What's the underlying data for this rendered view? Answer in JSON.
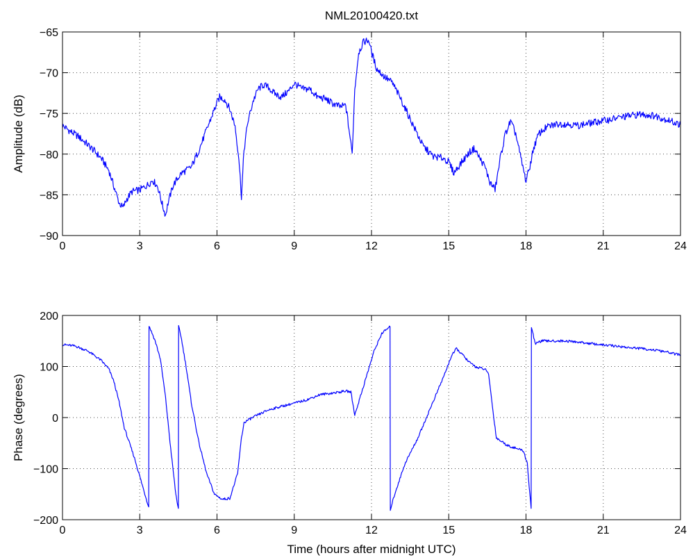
{
  "chart_data": [
    {
      "type": "line",
      "title": "NML20100420.txt",
      "xlabel": "",
      "ylabel": "Amplitude (dB)",
      "xlim": [
        0,
        24
      ],
      "ylim": [
        -90,
        -65
      ],
      "xticks": [
        0,
        3,
        6,
        9,
        12,
        15,
        18,
        21,
        24
      ],
      "yticks": [
        -90,
        -85,
        -80,
        -75,
        -70,
        -65
      ],
      "xtick_labels": [
        "0",
        "3",
        "6",
        "9",
        "12",
        "15",
        "18",
        "21",
        "24"
      ],
      "ytick_labels": [
        "−90",
        "−85",
        "−80",
        "−75",
        "−70",
        "−65"
      ],
      "grid": true,
      "series": [
        {
          "color": "#0000ff",
          "x": [
            0,
            0.3,
            0.6,
            0.9,
            1.2,
            1.5,
            1.8,
            2.0,
            2.2,
            2.35,
            2.5,
            2.7,
            3.0,
            3.3,
            3.5,
            3.7,
            3.9,
            4.0,
            4.1,
            4.3,
            4.6,
            5.0,
            5.3,
            5.6,
            5.9,
            6.1,
            6.3,
            6.5,
            6.7,
            6.85,
            6.95,
            7.05,
            7.2,
            7.4,
            7.6,
            7.8,
            8.0,
            8.2,
            8.5,
            8.8,
            9.0,
            9.3,
            9.6,
            9.9,
            10.2,
            10.5,
            10.8,
            11.0,
            11.15,
            11.25,
            11.35,
            11.5,
            11.7,
            11.9,
            12.0,
            12.2,
            12.5,
            12.8,
            13.1,
            13.4,
            13.7,
            14.0,
            14.4,
            14.8,
            15.0,
            15.2,
            15.5,
            15.8,
            16.0,
            16.2,
            16.4,
            16.6,
            16.8,
            16.9,
            17.0,
            17.2,
            17.4,
            17.6,
            17.8,
            18.0,
            18.15,
            18.3,
            18.5,
            18.8,
            19.2,
            19.6,
            20.0,
            20.5,
            21.0,
            21.5,
            22.0,
            22.5,
            23.0,
            23.5,
            24.0
          ],
          "values": [
            -76.5,
            -77.2,
            -77.8,
            -78.6,
            -79.5,
            -80.5,
            -82.0,
            -84.0,
            -86.0,
            -86.6,
            -85.5,
            -84.6,
            -84.4,
            -83.8,
            -83.2,
            -84.0,
            -86.5,
            -87.5,
            -86.0,
            -83.8,
            -82.4,
            -81.6,
            -79.5,
            -77.0,
            -74.5,
            -73.0,
            -73.3,
            -74.5,
            -76.5,
            -80.5,
            -85.2,
            -79.5,
            -76.0,
            -73.5,
            -72.0,
            -71.5,
            -71.8,
            -72.5,
            -73.0,
            -72.2,
            -71.3,
            -72.0,
            -72.0,
            -73.0,
            -73.2,
            -73.8,
            -74.2,
            -74.0,
            -77.5,
            -80.0,
            -72.0,
            -67.5,
            -66.2,
            -66.0,
            -67.5,
            -69.5,
            -70.5,
            -71.2,
            -73.0,
            -75.0,
            -77.0,
            -79.0,
            -80.3,
            -80.5,
            -81.0,
            -82.3,
            -81.0,
            -79.8,
            -79.3,
            -80.5,
            -81.5,
            -83.5,
            -84.3,
            -82.5,
            -80.5,
            -77.5,
            -76.0,
            -77.5,
            -80.5,
            -83.3,
            -81.5,
            -79.2,
            -77.5,
            -76.7,
            -76.3,
            -76.3,
            -76.5,
            -76.2,
            -75.9,
            -75.6,
            -75.3,
            -75.1,
            -75.3,
            -75.8,
            -76.4
          ]
        }
      ]
    },
    {
      "type": "line",
      "title": "",
      "xlabel": "Time (hours after midnight UTC)",
      "ylabel": "Phase (degrees)",
      "xlim": [
        0,
        24
      ],
      "ylim": [
        -200,
        200
      ],
      "xticks": [
        0,
        3,
        6,
        9,
        12,
        15,
        18,
        21,
        24
      ],
      "yticks": [
        -200,
        -100,
        0,
        100,
        200
      ],
      "xtick_labels": [
        "0",
        "3",
        "6",
        "9",
        "12",
        "15",
        "18",
        "21",
        "24"
      ],
      "ytick_labels": [
        "−200",
        "−100",
        "0",
        "100",
        "200"
      ],
      "grid": true,
      "series": [
        {
          "color": "#0000ff",
          "x": [
            0,
            0.5,
            1.0,
            1.5,
            1.8,
            2.0,
            2.2,
            2.4,
            2.6,
            2.8,
            3.0,
            3.2,
            3.35,
            3.36,
            3.4,
            3.6,
            3.8,
            4.0,
            4.2,
            4.4,
            4.5,
            4.51,
            4.6,
            4.8,
            5.0,
            5.3,
            5.6,
            5.9,
            6.2,
            6.5,
            6.8,
            6.95,
            7.05,
            7.2,
            7.5,
            8.0,
            8.5,
            9.0,
            9.5,
            10.0,
            10.5,
            11.0,
            11.2,
            11.35,
            11.5,
            11.8,
            12.1,
            12.4,
            12.72,
            12.73,
            12.9,
            13.3,
            13.8,
            14.3,
            14.8,
            15.1,
            15.3,
            15.5,
            15.8,
            16.1,
            16.4,
            16.55,
            16.7,
            16.85,
            17.0,
            17.3,
            17.6,
            17.9,
            18.05,
            18.15,
            18.2,
            18.21,
            18.35,
            18.6,
            19.0,
            19.5,
            20.0,
            20.5,
            21.0,
            21.5,
            22.0,
            22.5,
            23.0,
            23.5,
            24.0
          ],
          "values": [
            143,
            140,
            130,
            112,
            95,
            70,
            30,
            -20,
            -50,
            -80,
            -115,
            -150,
            -175,
            180,
            175,
            150,
            115,
            40,
            -60,
            -150,
            -178,
            178,
            160,
            100,
            30,
            -50,
            -110,
            -150,
            -160,
            -158,
            -110,
            -40,
            -10,
            -5,
            3,
            15,
            22,
            28,
            35,
            45,
            48,
            52,
            50,
            5,
            30,
            80,
            130,
            165,
            178,
            -180,
            -150,
            -90,
            -40,
            20,
            80,
            120,
            135,
            125,
            108,
            98,
            95,
            85,
            20,
            -40,
            -45,
            -55,
            -60,
            -65,
            -90,
            -150,
            -178,
            178,
            145,
            150,
            150,
            150,
            148,
            145,
            142,
            140,
            137,
            135,
            132,
            128,
            122
          ]
        }
      ]
    }
  ]
}
